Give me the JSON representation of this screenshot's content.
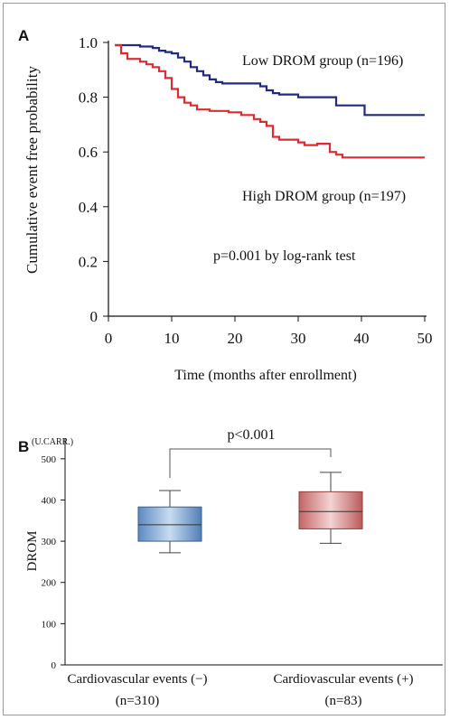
{
  "chart_data": [
    {
      "panel_label": "A",
      "type": "line",
      "step": true,
      "xlabel": "Time (months after enrollment)",
      "ylabel": "Cumulative event free probability",
      "xlim": [
        0,
        50
      ],
      "ylim": [
        0,
        1.0
      ],
      "x_ticks": [
        "0",
        "10",
        "20",
        "30",
        "40",
        "50"
      ],
      "y_ticks": [
        "0",
        "0.2",
        "0.4",
        "0.6",
        "0.8",
        "1.0"
      ],
      "annotations": [
        "p=0.001 by log-rank test"
      ],
      "series": [
        {
          "name": "Low DROM group (n=196)",
          "color": "#1f2a80",
          "points": [
            [
              1,
              0.99
            ],
            [
              4,
              0.99
            ],
            [
              5,
              0.985
            ],
            [
              7,
              0.98
            ],
            [
              8,
              0.97
            ],
            [
              9,
              0.965
            ],
            [
              10,
              0.96
            ],
            [
              11,
              0.945
            ],
            [
              12,
              0.93
            ],
            [
              13,
              0.91
            ],
            [
              14,
              0.895
            ],
            [
              15,
              0.88
            ],
            [
              16,
              0.865
            ],
            [
              17,
              0.855
            ],
            [
              18,
              0.85
            ],
            [
              23,
              0.85
            ],
            [
              24,
              0.84
            ],
            [
              25,
              0.825
            ],
            [
              26,
              0.815
            ],
            [
              27,
              0.81
            ],
            [
              29,
              0.81
            ],
            [
              30,
              0.8
            ],
            [
              35,
              0.8
            ],
            [
              36,
              0.77
            ],
            [
              40,
              0.77
            ],
            [
              40.5,
              0.735
            ],
            [
              50,
              0.735
            ]
          ]
        },
        {
          "name": "High DROM group (n=197)",
          "color": "#e02a30",
          "points": [
            [
              1,
              0.99
            ],
            [
              2,
              0.96
            ],
            [
              3,
              0.94
            ],
            [
              5,
              0.93
            ],
            [
              6,
              0.92
            ],
            [
              7,
              0.91
            ],
            [
              8,
              0.895
            ],
            [
              9,
              0.87
            ],
            [
              10,
              0.83
            ],
            [
              11,
              0.8
            ],
            [
              12,
              0.78
            ],
            [
              13,
              0.77
            ],
            [
              14,
              0.755
            ],
            [
              16,
              0.75
            ],
            [
              19,
              0.745
            ],
            [
              21,
              0.735
            ],
            [
              23,
              0.72
            ],
            [
              24,
              0.71
            ],
            [
              25,
              0.695
            ],
            [
              26,
              0.655
            ],
            [
              27,
              0.645
            ],
            [
              30,
              0.635
            ],
            [
              31,
              0.625
            ],
            [
              33,
              0.63
            ],
            [
              35,
              0.6
            ],
            [
              36,
              0.59
            ],
            [
              37,
              0.58
            ],
            [
              50,
              0.58
            ]
          ]
        }
      ]
    },
    {
      "panel_label": "B",
      "type": "box",
      "unit": "(U.CARR.)",
      "ylabel": "DROM",
      "ylim": [
        0,
        550
      ],
      "y_ticks": [
        "0",
        "100",
        "200",
        "300",
        "400",
        "500"
      ],
      "comparison_label": "p<0.001",
      "categories": [
        "Cardiovascular events (−)",
        "Cardiovascular events (+)"
      ],
      "category_n": [
        "(n=310)",
        "(n=83)"
      ],
      "boxes": [
        {
          "min": 272,
          "q1": 300,
          "median": 340,
          "q3": 383,
          "max": 423,
          "color": "#5a8cc6"
        },
        {
          "min": 295,
          "q1": 330,
          "median": 372,
          "q3": 420,
          "max": 467,
          "color": "#c96c6c"
        }
      ]
    }
  ]
}
